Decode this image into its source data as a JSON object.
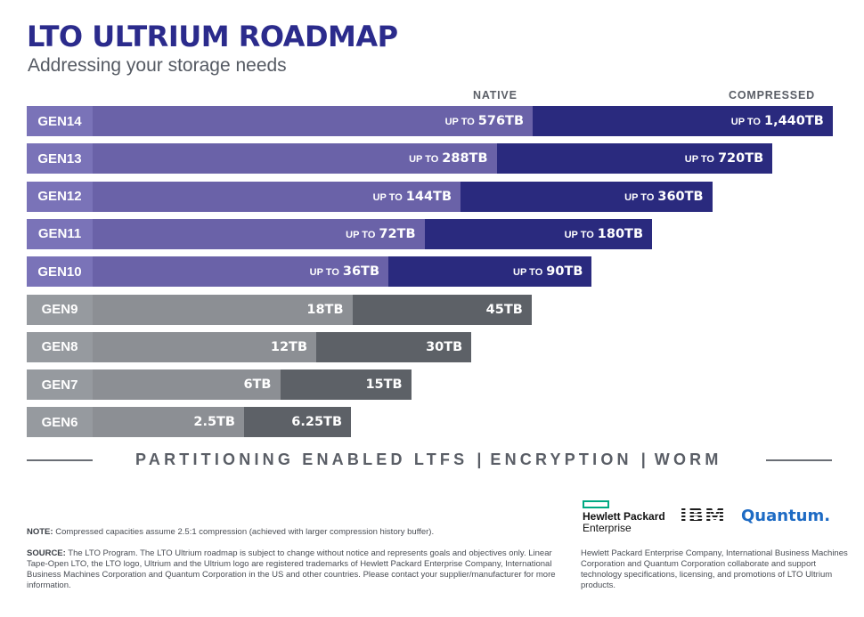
{
  "title": "LTO ULTRIUM ROADMAP",
  "subtitle": "Addressing your storage needs",
  "col_native": "NATIVE",
  "col_compressed": "COMPRESSED",
  "colors": {
    "lto_native": "#6a62a8",
    "lto_compressed": "#2a2a7e",
    "lto_gen": "#7a73b8",
    "legacy_native": "#8c8f94",
    "legacy_compressed": "#5d6167",
    "legacy_gen": "#969a9f"
  },
  "chart_data": {
    "type": "bar",
    "orientation": "horizontal",
    "stacked": true,
    "categories": [
      "GEN14",
      "GEN13",
      "GEN12",
      "GEN11",
      "GEN10",
      "GEN9",
      "GEN8",
      "GEN7",
      "GEN6"
    ],
    "series": [
      {
        "name": "NATIVE",
        "values": [
          576,
          288,
          144,
          72,
          36,
          18,
          12,
          6,
          2.5
        ]
      },
      {
        "name": "COMPRESSED",
        "values": [
          1440,
          720,
          360,
          180,
          90,
          45,
          30,
          15,
          6.25
        ]
      }
    ],
    "rows": [
      {
        "gen": "GEN14",
        "prefix": "UP TO",
        "native_label": "576TB",
        "compressed_label": "1,440TB",
        "native": 576,
        "compressed": 1440,
        "future": true
      },
      {
        "gen": "GEN13",
        "prefix": "UP TO",
        "native_label": "288TB",
        "compressed_label": "720TB",
        "native": 288,
        "compressed": 720,
        "future": true
      },
      {
        "gen": "GEN12",
        "prefix": "UP TO",
        "native_label": "144TB",
        "compressed_label": "360TB",
        "native": 144,
        "compressed": 360,
        "future": true
      },
      {
        "gen": "GEN11",
        "prefix": "UP TO",
        "native_label": "72TB",
        "compressed_label": "180TB",
        "native": 72,
        "compressed": 180,
        "future": true
      },
      {
        "gen": "GEN10",
        "prefix": "UP TO",
        "native_label": "36TB",
        "compressed_label": "90TB",
        "native": 36,
        "compressed": 90,
        "future": true
      },
      {
        "gen": "GEN9",
        "prefix": "",
        "native_label": "18TB",
        "compressed_label": "45TB",
        "native": 18,
        "compressed": 45,
        "future": false
      },
      {
        "gen": "GEN8",
        "prefix": "",
        "native_label": "12TB",
        "compressed_label": "30TB",
        "native": 12,
        "compressed": 30,
        "future": false
      },
      {
        "gen": "GEN7",
        "prefix": "",
        "native_label": "6TB",
        "compressed_label": "15TB",
        "native": 6,
        "compressed": 15,
        "future": false
      },
      {
        "gen": "GEN6",
        "prefix": "",
        "native_label": "2.5TB",
        "compressed_label": "6.25TB",
        "native": 2.5,
        "compressed": 6.25,
        "future": false
      }
    ],
    "scale": "ordinal (each generation bar grows by equal steps)",
    "grid": false,
    "legend": "column headers top-right"
  },
  "features": {
    "items": [
      "PARTITIONING ENABLED LTFS",
      "ENCRYPTION",
      "WORM"
    ],
    "separator": "|"
  },
  "logos": {
    "hpe_line1": "Hewlett Packard",
    "hpe_line2": "Enterprise",
    "ibm": "IBM",
    "quantum": "Quantum."
  },
  "note": {
    "label": "NOTE:",
    "text": "Compressed capacities assume 2.5:1 compression (achieved with larger compression history buffer)."
  },
  "source": {
    "label": "SOURCE:",
    "text": "The LTO Program. The LTO Ultrium roadmap is subject to change without notice and represents goals and objectives only. Linear Tape-Open LTO, the LTO logo, Ultrium and the Ultrium logo are registered trademarks of Hewlett Packard Enterprise Company, International Business Machines Corporation and Quantum Corporation in the US and other countries. Please contact your supplier/manufacturer for more information."
  },
  "partners_text": "Hewlett Packard Enterprise Company, International Business Machines Corporation and Quantum Corporation collaborate and support technology specifications, licensing, and promotions of LTO Ultrium products."
}
